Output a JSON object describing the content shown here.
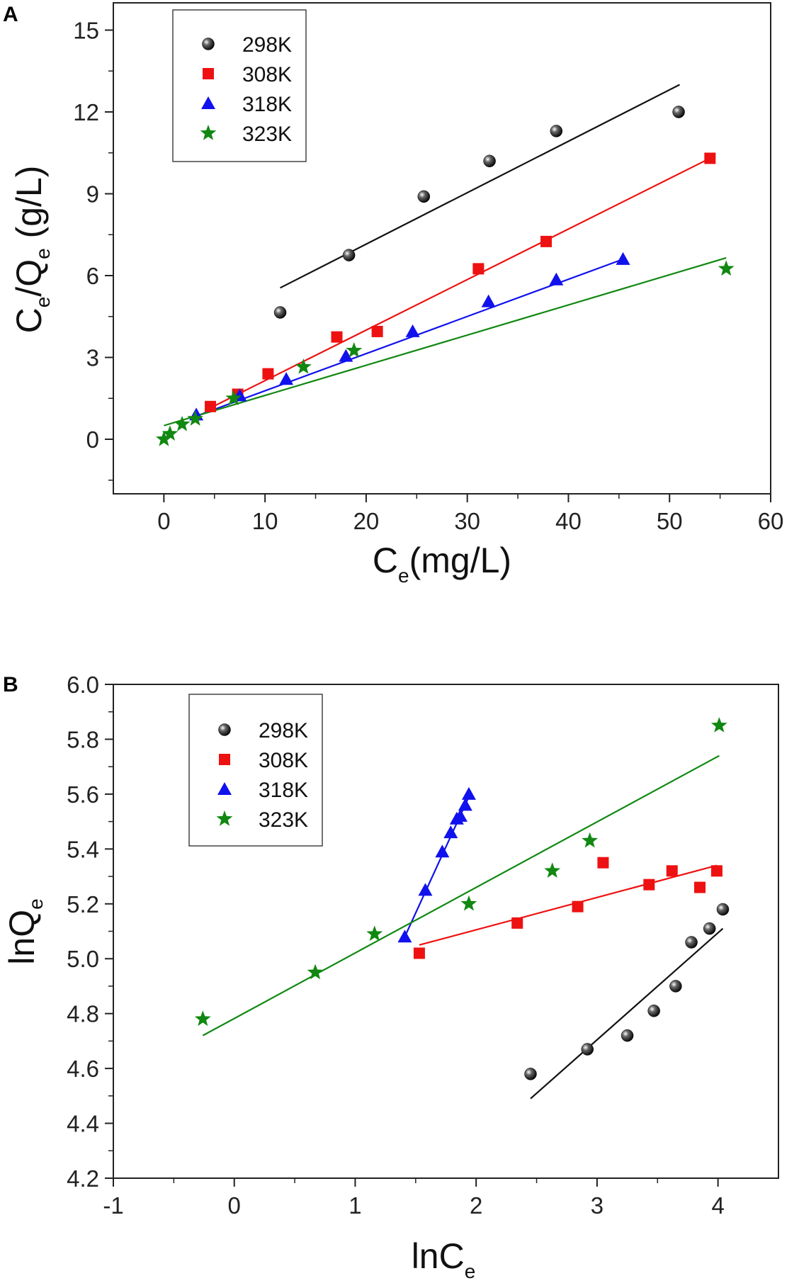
{
  "chart_data": [
    {
      "panel": "A",
      "type": "scatter",
      "xlabel": {
        "main": "C",
        "sub": "e",
        "rest": "(mg/L)"
      },
      "ylabel": {
        "c": "C",
        "sub1": "e",
        "mid": "/Q",
        "sub2": "e",
        "rest": " (g/L)"
      },
      "xlim": [
        -5,
        60
      ],
      "ylim": [
        -2,
        16
      ],
      "xticks": [
        0,
        10,
        20,
        30,
        40,
        50,
        60
      ],
      "yticks": [
        0,
        3,
        6,
        9,
        12,
        15
      ],
      "legend": {
        "position": "top-left"
      },
      "series": [
        {
          "name": "298K",
          "marker": "sphere",
          "color": "#111111",
          "points": [
            [
              11.5,
              4.65
            ],
            [
              18.3,
              6.75
            ],
            [
              25.7,
              8.9
            ],
            [
              32.2,
              10.2
            ],
            [
              38.8,
              11.3
            ],
            [
              50.9,
              12.0
            ]
          ],
          "fit": [
            [
              11.5,
              5.55
            ],
            [
              51.0,
              13.0
            ]
          ]
        },
        {
          "name": "308K",
          "marker": "square",
          "color": "#ee1111",
          "points": [
            [
              4.6,
              1.2
            ],
            [
              7.3,
              1.65
            ],
            [
              10.3,
              2.4
            ],
            [
              17.1,
              3.75
            ],
            [
              21.1,
              3.95
            ],
            [
              31.1,
              6.25
            ],
            [
              37.8,
              7.25
            ],
            [
              54.0,
              10.3
            ]
          ],
          "fit": [
            [
              4.6,
              1.15
            ],
            [
              54.0,
              10.3
            ]
          ]
        },
        {
          "name": "318K",
          "marker": "triangle",
          "color": "#1111ee",
          "points": [
            [
              3.2,
              0.9
            ],
            [
              7.5,
              1.6
            ],
            [
              12.1,
              2.2
            ],
            [
              18.0,
              3.05
            ],
            [
              24.6,
              3.95
            ],
            [
              32.1,
              5.05
            ],
            [
              38.8,
              5.85
            ],
            [
              45.4,
              6.6
            ]
          ],
          "fit": [
            [
              3.2,
              0.85
            ],
            [
              45.4,
              6.6
            ]
          ]
        },
        {
          "name": "323K",
          "marker": "star",
          "color": "#118811",
          "points": [
            [
              0.0,
              0.0
            ],
            [
              0.6,
              0.2
            ],
            [
              1.8,
              0.55
            ],
            [
              3.1,
              0.75
            ],
            [
              6.9,
              1.5
            ],
            [
              13.8,
              2.65
            ],
            [
              18.8,
              3.25
            ],
            [
              55.6,
              6.25
            ]
          ],
          "fit": [
            [
              0.0,
              0.5
            ],
            [
              55.6,
              6.65
            ]
          ]
        }
      ]
    },
    {
      "panel": "B",
      "type": "scatter",
      "xlabel": {
        "main": "lnC",
        "sub": "e",
        "rest": ""
      },
      "ylabel": {
        "main": "lnQ",
        "sub": "e"
      },
      "xlim": [
        -1,
        4.5
      ],
      "ylim": [
        4.2,
        6.0
      ],
      "xticks": [
        -1,
        0,
        1,
        2,
        3,
        4
      ],
      "yticks": [
        4.2,
        4.4,
        4.6,
        4.8,
        5.0,
        5.2,
        5.4,
        5.6,
        5.8,
        6.0
      ],
      "legend": {
        "position": "top-left"
      },
      "series": [
        {
          "name": "298K",
          "marker": "sphere",
          "color": "#111111",
          "points": [
            [
              2.45,
              4.58
            ],
            [
              2.92,
              4.67
            ],
            [
              3.25,
              4.72
            ],
            [
              3.47,
              4.81
            ],
            [
              3.65,
              4.9
            ],
            [
              3.78,
              5.06
            ],
            [
              3.93,
              5.11
            ],
            [
              4.04,
              5.18
            ]
          ],
          "fit": [
            [
              2.45,
              4.49
            ],
            [
              4.04,
              5.11
            ]
          ]
        },
        {
          "name": "308K",
          "marker": "square",
          "color": "#ee1111",
          "points": [
            [
              1.53,
              5.02
            ],
            [
              2.34,
              5.13
            ],
            [
              2.84,
              5.19
            ],
            [
              3.05,
              5.35
            ],
            [
              3.43,
              5.27
            ],
            [
              3.62,
              5.32
            ],
            [
              3.85,
              5.26
            ],
            [
              3.99,
              5.32
            ]
          ],
          "fit": [
            [
              1.53,
              5.05
            ],
            [
              3.99,
              5.34
            ]
          ]
        },
        {
          "name": "318K",
          "marker": "triangle",
          "color": "#1111ee",
          "points": [
            [
              1.41,
              5.08
            ],
            [
              1.58,
              5.25
            ],
            [
              1.72,
              5.39
            ],
            [
              1.79,
              5.46
            ],
            [
              1.84,
              5.51
            ],
            [
              1.87,
              5.52
            ],
            [
              1.91,
              5.56
            ],
            [
              1.94,
              5.6
            ]
          ],
          "fit": [
            [
              1.41,
              5.08
            ],
            [
              1.95,
              5.6
            ]
          ]
        },
        {
          "name": "323K",
          "marker": "star",
          "color": "#118811",
          "points": [
            [
              -0.26,
              4.78
            ],
            [
              0.67,
              4.95
            ],
            [
              1.16,
              5.09
            ],
            [
              1.94,
              5.2
            ],
            [
              2.63,
              5.32
            ],
            [
              2.94,
              5.43
            ],
            [
              4.01,
              5.85
            ]
          ],
          "fit": [
            [
              -0.26,
              4.72
            ],
            [
              4.01,
              5.74
            ]
          ]
        }
      ]
    }
  ]
}
